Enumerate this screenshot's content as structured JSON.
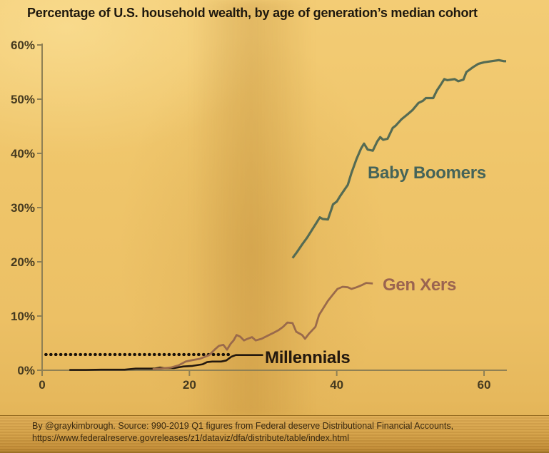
{
  "title": "Percentage of U.S. household wealth, by age of generation’s median cohort",
  "labels": {
    "baby_boomers": "Baby Boomers",
    "gen_xers": "Gen Xers",
    "millennials": "Millennials"
  },
  "source": {
    "line1": "By @graykimbrough. Source: 990-2019 Q1 figures from Federal deserve Distributional  Financial Accounts,",
    "line2": "https://www.federalreserve.govreleases/z1/dataviz/dfa/distribute/table/index.html"
  },
  "colors": {
    "background": "#efc56a",
    "title_text": "#1e180e",
    "axis": "#8f8054",
    "tick_text": "#453a20",
    "baby_boomers_line": "#556b53",
    "baby_boomers_label": "#456459",
    "gen_xers_line": "#9a6a4b",
    "gen_xers_label": "#9b6450",
    "millennials_line": "#23180e",
    "dotted_line": "#1a120a",
    "source_text": "#38280f"
  },
  "chart_data": {
    "type": "line",
    "title": "Percentage of U.S. household wealth, by age of generation’s median cohort",
    "xlabel": "",
    "ylabel": "",
    "grid": false,
    "legend_position": "inline-labels",
    "x_axis": {
      "range": [
        0,
        63
      ],
      "ticks": [
        0,
        20,
        40,
        60
      ],
      "tick_labels": [
        "0",
        "20",
        "40",
        "60"
      ]
    },
    "y_axis": {
      "range": [
        0,
        60
      ],
      "ticks": [
        0,
        10,
        20,
        30,
        40,
        50,
        60
      ],
      "tick_labels": [
        "0%",
        "10%",
        "20%",
        "30%",
        "40%",
        "50%",
        "60%"
      ]
    },
    "reference_line": {
      "style": "dotted",
      "value": 2.9,
      "x_start": 0.5,
      "x_end": 25.3
    },
    "series": [
      {
        "name": "Baby Boomers",
        "points": [
          [
            34,
            20.7
          ],
          [
            34.6,
            21.8
          ],
          [
            35.3,
            23.2
          ],
          [
            36,
            24.5
          ],
          [
            36.6,
            25.8
          ],
          [
            37.3,
            27.3
          ],
          [
            37.7,
            28.2
          ],
          [
            38.1,
            27.9
          ],
          [
            38.8,
            27.8
          ],
          [
            39.3,
            29.8
          ],
          [
            39.5,
            30.6
          ],
          [
            40,
            31.1
          ],
          [
            40.5,
            32.2
          ],
          [
            41,
            33.2
          ],
          [
            41.5,
            34.2
          ],
          [
            42,
            36.4
          ],
          [
            42.7,
            39.0
          ],
          [
            43.3,
            40.9
          ],
          [
            43.7,
            41.8
          ],
          [
            44.2,
            40.7
          ],
          [
            44.9,
            40.5
          ],
          [
            45.5,
            42.2
          ],
          [
            45.9,
            43.0
          ],
          [
            46.3,
            42.5
          ],
          [
            46.9,
            42.7
          ],
          [
            47.6,
            44.7
          ],
          [
            48,
            45.1
          ],
          [
            48.8,
            46.3
          ],
          [
            49.7,
            47.3
          ],
          [
            50.3,
            48.0
          ],
          [
            51.1,
            49.3
          ],
          [
            51.7,
            49.7
          ],
          [
            52.1,
            50.2
          ],
          [
            53.1,
            50.2
          ],
          [
            53.6,
            51.6
          ],
          [
            54.1,
            52.6
          ],
          [
            54.6,
            53.7
          ],
          [
            55,
            53.5
          ],
          [
            56,
            53.7
          ],
          [
            56.5,
            53.3
          ],
          [
            57.2,
            53.6
          ],
          [
            57.6,
            55.0
          ],
          [
            58.5,
            55.9
          ],
          [
            59.2,
            56.5
          ],
          [
            60,
            56.8
          ],
          [
            61,
            57.0
          ],
          [
            62,
            57.2
          ],
          [
            62.7,
            57.0
          ],
          [
            63,
            57.0
          ]
        ]
      },
      {
        "name": "Gen Xers",
        "points": [
          [
            15,
            0.2
          ],
          [
            16,
            0.3
          ],
          [
            17.5,
            0.5
          ],
          [
            18.5,
            0.9
          ],
          [
            19.5,
            1.6
          ],
          [
            20.5,
            1.9
          ],
          [
            21.4,
            2.1
          ],
          [
            22.7,
            2.8
          ],
          [
            23.5,
            3.9
          ],
          [
            24,
            4.5
          ],
          [
            24.6,
            4.7
          ],
          [
            25.1,
            3.8
          ],
          [
            25.6,
            4.9
          ],
          [
            26,
            5.5
          ],
          [
            26.4,
            6.5
          ],
          [
            26.9,
            6.2
          ],
          [
            27.4,
            5.5
          ],
          [
            27.9,
            5.8
          ],
          [
            28.5,
            6.1
          ],
          [
            29,
            5.5
          ],
          [
            29.8,
            5.8
          ],
          [
            30.8,
            6.5
          ],
          [
            31.4,
            6.9
          ],
          [
            32.1,
            7.4
          ],
          [
            32.7,
            8.0
          ],
          [
            33.3,
            8.8
          ],
          [
            34,
            8.7
          ],
          [
            34.5,
            7.1
          ],
          [
            35.3,
            6.5
          ],
          [
            35.7,
            5.8
          ],
          [
            36.2,
            6.7
          ],
          [
            37.1,
            8.0
          ],
          [
            37.6,
            10.2
          ],
          [
            38.2,
            11.5
          ],
          [
            38.8,
            12.8
          ],
          [
            39.5,
            14.0
          ],
          [
            40.1,
            15.0
          ],
          [
            40.8,
            15.4
          ],
          [
            41.5,
            15.3
          ],
          [
            42,
            15.0
          ],
          [
            42.7,
            15.3
          ],
          [
            43.4,
            15.7
          ],
          [
            44,
            16.1
          ],
          [
            44.9,
            16.0
          ]
        ]
      },
      {
        "name": "Millennials",
        "points": [
          [
            3.7,
            0.05
          ],
          [
            6,
            0.05
          ],
          [
            8,
            0.1
          ],
          [
            10,
            0.1
          ],
          [
            11.2,
            0.1
          ],
          [
            12.7,
            0.3
          ],
          [
            14,
            0.3
          ],
          [
            15.3,
            0.3
          ],
          [
            16,
            0.5
          ],
          [
            16.6,
            0.4
          ],
          [
            17.9,
            0.4
          ],
          [
            19.2,
            0.7
          ],
          [
            20.4,
            0.8
          ],
          [
            21.8,
            1.1
          ],
          [
            22.4,
            1.5
          ],
          [
            23.1,
            1.6
          ],
          [
            24.3,
            1.6
          ],
          [
            25,
            1.8
          ],
          [
            25.7,
            2.5
          ],
          [
            26.3,
            2.8
          ],
          [
            27,
            2.8
          ],
          [
            30,
            2.8
          ]
        ]
      }
    ]
  }
}
